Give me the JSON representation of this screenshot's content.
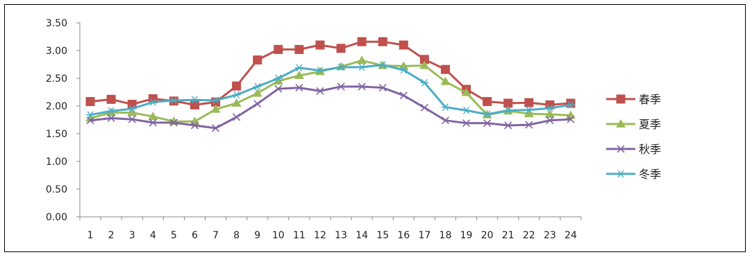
{
  "chart_data": {
    "type": "line",
    "title": "",
    "xlabel": "",
    "ylabel": "",
    "ylim": [
      0,
      3.5
    ],
    "yticks": [
      "0.00",
      "0.50",
      "1.00",
      "1.50",
      "2.00",
      "2.50",
      "3.00",
      "3.50"
    ],
    "categories": [
      "1",
      "2",
      "3",
      "4",
      "5",
      "6",
      "7",
      "8",
      "9",
      "10",
      "11",
      "12",
      "13",
      "14",
      "15",
      "16",
      "17",
      "18",
      "19",
      "20",
      "21",
      "22",
      "23",
      "24"
    ],
    "grid": false,
    "legend": "right",
    "series": [
      {
        "name": "春季",
        "color": "#c0504d",
        "marker": "square",
        "values": [
          2.08,
          2.12,
          2.03,
          2.13,
          2.09,
          2.02,
          2.07,
          2.36,
          2.83,
          3.02,
          3.02,
          3.1,
          3.04,
          3.16,
          3.16,
          3.1,
          2.84,
          2.66,
          2.3,
          2.08,
          2.05,
          2.06,
          2.02,
          2.05
        ]
      },
      {
        "name": "夏季",
        "color": "#9bbb59",
        "marker": "triangle",
        "values": [
          1.78,
          1.88,
          1.88,
          1.81,
          1.72,
          1.72,
          1.94,
          2.05,
          2.23,
          2.45,
          2.55,
          2.62,
          2.71,
          2.82,
          2.73,
          2.72,
          2.73,
          2.44,
          2.24,
          1.84,
          1.91,
          1.86,
          1.85,
          1.83
        ]
      },
      {
        "name": "秋季",
        "color": "#8064a2",
        "marker": "x",
        "values": [
          1.74,
          1.78,
          1.76,
          1.7,
          1.7,
          1.65,
          1.6,
          1.8,
          2.04,
          2.31,
          2.33,
          2.27,
          2.35,
          2.35,
          2.33,
          2.19,
          1.97,
          1.74,
          1.69,
          1.69,
          1.65,
          1.66,
          1.74,
          1.76
        ]
      },
      {
        "name": "冬季",
        "color": "#4bacc6",
        "marker": "star",
        "values": [
          1.84,
          1.91,
          1.95,
          2.07,
          2.1,
          2.11,
          2.1,
          2.2,
          2.35,
          2.5,
          2.69,
          2.64,
          2.7,
          2.7,
          2.74,
          2.65,
          2.42,
          1.98,
          1.92,
          1.85,
          1.92,
          1.93,
          1.96,
          2.02
        ]
      }
    ]
  }
}
